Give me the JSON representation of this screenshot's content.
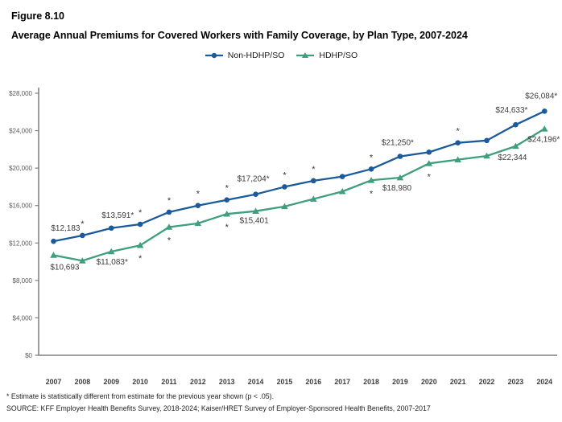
{
  "chart_data": {
    "type": "line",
    "figure_label": "Figure 8.10",
    "title": "Average Annual Premiums for Covered Workers with Family Coverage, by Plan Type, 2007-2024",
    "xlabel": "",
    "ylabel": "",
    "x": [
      2007,
      2008,
      2009,
      2010,
      2011,
      2012,
      2013,
      2014,
      2015,
      2016,
      2017,
      2018,
      2019,
      2020,
      2021,
      2022,
      2023,
      2024
    ],
    "ylim": [
      0,
      28000
    ],
    "ytick_step": 4000,
    "ytick_labels": [
      "$0",
      "$4,000",
      "$8,000",
      "$12,000",
      "$16,000",
      "$20,000",
      "$24,000",
      "$28,000"
    ],
    "grid": false,
    "legend_position": "top-center",
    "axis_color": "#7f7f7f",
    "series": [
      {
        "name": "Non-HDHP/SO",
        "color": "#1b5a9b",
        "marker": "circle",
        "values": [
          12183,
          12800,
          13591,
          14000,
          15300,
          16000,
          16600,
          17204,
          18000,
          18650,
          19100,
          19900,
          21250,
          21700,
          22700,
          22950,
          24633,
          26084
        ],
        "significant_years": [
          2008,
          2009,
          2010,
          2011,
          2012,
          2013,
          2014,
          2015,
          2016,
          2018,
          2019,
          2021,
          2023,
          2024
        ],
        "point_labels": {
          "2007": "$12,183",
          "2009": "$13,591*",
          "2014": "$17,204*",
          "2019": "$21,250*",
          "2023": "$24,633*",
          "2024": "$26,084*"
        }
      },
      {
        "name": "HDHP/SO",
        "color": "#3f9e7f",
        "marker": "triangle",
        "values": [
          10693,
          10100,
          11083,
          11750,
          13700,
          14100,
          15100,
          15401,
          15900,
          16700,
          17500,
          18700,
          18980,
          20500,
          20900,
          21300,
          22344,
          24196
        ],
        "significant_years": [
          2009,
          2010,
          2011,
          2013,
          2018,
          2020,
          2024
        ],
        "point_labels": {
          "2007": "$10,693",
          "2009": "$11,083*",
          "2014": "$15,401",
          "2019": "$18,980",
          "2023": "$22,344",
          "2024": "$24,196*"
        }
      }
    ]
  },
  "footnotes": {
    "significance": "* Estimate is statistically different from estimate for the previous year shown (p < .05).",
    "source": "SOURCE: KFF Employer Health Benefits Survey, 2018-2024; Kaiser/HRET Survey of Employer-Sponsored Health Benefits, 2007-2017"
  }
}
